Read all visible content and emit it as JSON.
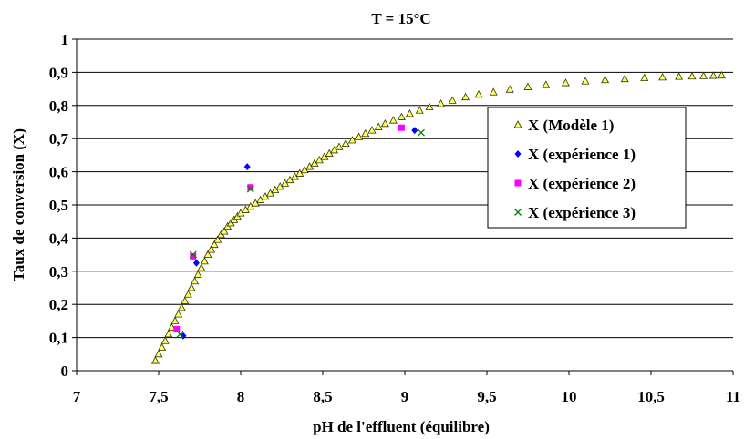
{
  "chart_data": {
    "type": "scatter",
    "title": "T = 15°C",
    "xlabel": "pH de l'effluent (équilibre)",
    "ylabel": "Taux de conversion (X)",
    "xlim": [
      7,
      11
    ],
    "ylim": [
      0,
      1
    ],
    "x_ticks": [
      7,
      7.5,
      8,
      8.5,
      9,
      9.5,
      10,
      10.5,
      11
    ],
    "x_tick_labels": [
      "7",
      "7,5",
      "8",
      "8,5",
      "9",
      "9,5",
      "10",
      "10,5",
      "11"
    ],
    "y_ticks": [
      0,
      0.1,
      0.2,
      0.3,
      0.4,
      0.5,
      0.6,
      0.7,
      0.8,
      0.9,
      1
    ],
    "y_tick_labels": [
      "0",
      "0,1",
      "0,2",
      "0,3",
      "0,4",
      "0,5",
      "0,6",
      "0,7",
      "0,8",
      "0,9",
      "1"
    ],
    "grid": "horizontal",
    "legend_position": "right",
    "colors": {
      "model_fill": "#ffff66",
      "model_stroke": "#333300",
      "exp1": "#0000ff",
      "exp2": "#ff00ff",
      "exp3": "#008000",
      "gridline": "#000000"
    },
    "series": [
      {
        "name": "X (Modèle 1)",
        "marker": "triangle",
        "color": "#ffff66",
        "points": [
          [
            7.48,
            0.03
          ],
          [
            7.5,
            0.05
          ],
          [
            7.52,
            0.07
          ],
          [
            7.54,
            0.09
          ],
          [
            7.56,
            0.11
          ],
          [
            7.58,
            0.13
          ],
          [
            7.6,
            0.15
          ],
          [
            7.62,
            0.17
          ],
          [
            7.64,
            0.19
          ],
          [
            7.66,
            0.21
          ],
          [
            7.68,
            0.23
          ],
          [
            7.7,
            0.25
          ],
          [
            7.72,
            0.27
          ],
          [
            7.74,
            0.29
          ],
          [
            7.76,
            0.31
          ],
          [
            7.78,
            0.33
          ],
          [
            7.8,
            0.35
          ],
          [
            7.82,
            0.365
          ],
          [
            7.84,
            0.38
          ],
          [
            7.86,
            0.395
          ],
          [
            7.88,
            0.41
          ],
          [
            7.9,
            0.42
          ],
          [
            7.92,
            0.435
          ],
          [
            7.94,
            0.445
          ],
          [
            7.96,
            0.455
          ],
          [
            7.98,
            0.465
          ],
          [
            8.0,
            0.475
          ],
          [
            8.03,
            0.485
          ],
          [
            8.06,
            0.495
          ],
          [
            8.09,
            0.505
          ],
          [
            8.12,
            0.515
          ],
          [
            8.15,
            0.525
          ],
          [
            8.18,
            0.535
          ],
          [
            8.21,
            0.545
          ],
          [
            8.24,
            0.555
          ],
          [
            8.27,
            0.565
          ],
          [
            8.3,
            0.575
          ],
          [
            8.33,
            0.585
          ],
          [
            8.36,
            0.595
          ],
          [
            8.39,
            0.605
          ],
          [
            8.42,
            0.615
          ],
          [
            8.45,
            0.625
          ],
          [
            8.48,
            0.635
          ],
          [
            8.51,
            0.645
          ],
          [
            8.54,
            0.655
          ],
          [
            8.57,
            0.665
          ],
          [
            8.6,
            0.675
          ],
          [
            8.64,
            0.685
          ],
          [
            8.68,
            0.695
          ],
          [
            8.72,
            0.705
          ],
          [
            8.76,
            0.715
          ],
          [
            8.8,
            0.725
          ],
          [
            8.84,
            0.735
          ],
          [
            8.88,
            0.745
          ],
          [
            8.93,
            0.755
          ],
          [
            8.98,
            0.765
          ],
          [
            9.03,
            0.775
          ],
          [
            9.09,
            0.785
          ],
          [
            9.15,
            0.795
          ],
          [
            9.22,
            0.805
          ],
          [
            9.29,
            0.815
          ],
          [
            9.37,
            0.825
          ],
          [
            9.45,
            0.833
          ],
          [
            9.54,
            0.84
          ],
          [
            9.64,
            0.848
          ],
          [
            9.75,
            0.856
          ],
          [
            9.86,
            0.862
          ],
          [
            9.98,
            0.868
          ],
          [
            10.1,
            0.873
          ],
          [
            10.22,
            0.877
          ],
          [
            10.34,
            0.88
          ],
          [
            10.46,
            0.883
          ],
          [
            10.57,
            0.885
          ],
          [
            10.67,
            0.887
          ],
          [
            10.75,
            0.888
          ],
          [
            10.82,
            0.889
          ],
          [
            10.88,
            0.89
          ],
          [
            10.93,
            0.891
          ]
        ]
      },
      {
        "name": "X (expérience 1)",
        "marker": "diamond",
        "color": "#0000ff",
        "points": [
          [
            7.65,
            0.105
          ],
          [
            7.73,
            0.325
          ],
          [
            8.04,
            0.615
          ],
          [
            9.06,
            0.725
          ]
        ]
      },
      {
        "name": "X (expérience 2)",
        "marker": "square",
        "color": "#ff00ff",
        "points": [
          [
            7.61,
            0.125
          ],
          [
            7.71,
            0.345
          ],
          [
            8.06,
            0.553
          ],
          [
            8.98,
            0.733
          ]
        ]
      },
      {
        "name": "X (expérience 3)",
        "marker": "cross",
        "color": "#008000",
        "points": [
          [
            7.63,
            0.11
          ],
          [
            7.71,
            0.35
          ],
          [
            8.06,
            0.548
          ],
          [
            9.1,
            0.718
          ]
        ]
      }
    ]
  }
}
